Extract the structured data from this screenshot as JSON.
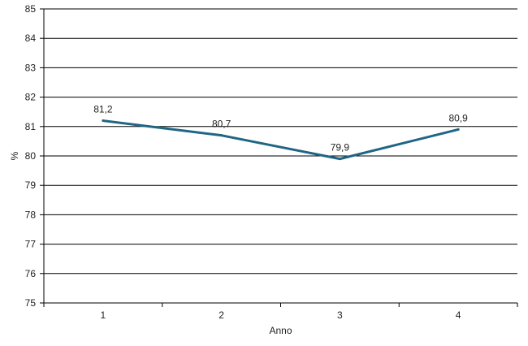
{
  "chart_data": {
    "type": "line",
    "xlabel": "Anno",
    "ylabel": "%",
    "ylim": [
      75,
      85
    ],
    "yticks": [
      "75",
      "76",
      "77",
      "78",
      "79",
      "80",
      "81",
      "82",
      "83",
      "84",
      "85"
    ],
    "categories": [
      "1",
      "2",
      "3",
      "4"
    ],
    "series": [
      {
        "values": [
          81.2,
          80.7,
          79.9,
          80.9
        ],
        "data_labels": [
          "81,2",
          "80,7",
          "79,9",
          "80,9"
        ],
        "color": "#1f6684"
      }
    ],
    "grid": true,
    "legend": "none"
  }
}
